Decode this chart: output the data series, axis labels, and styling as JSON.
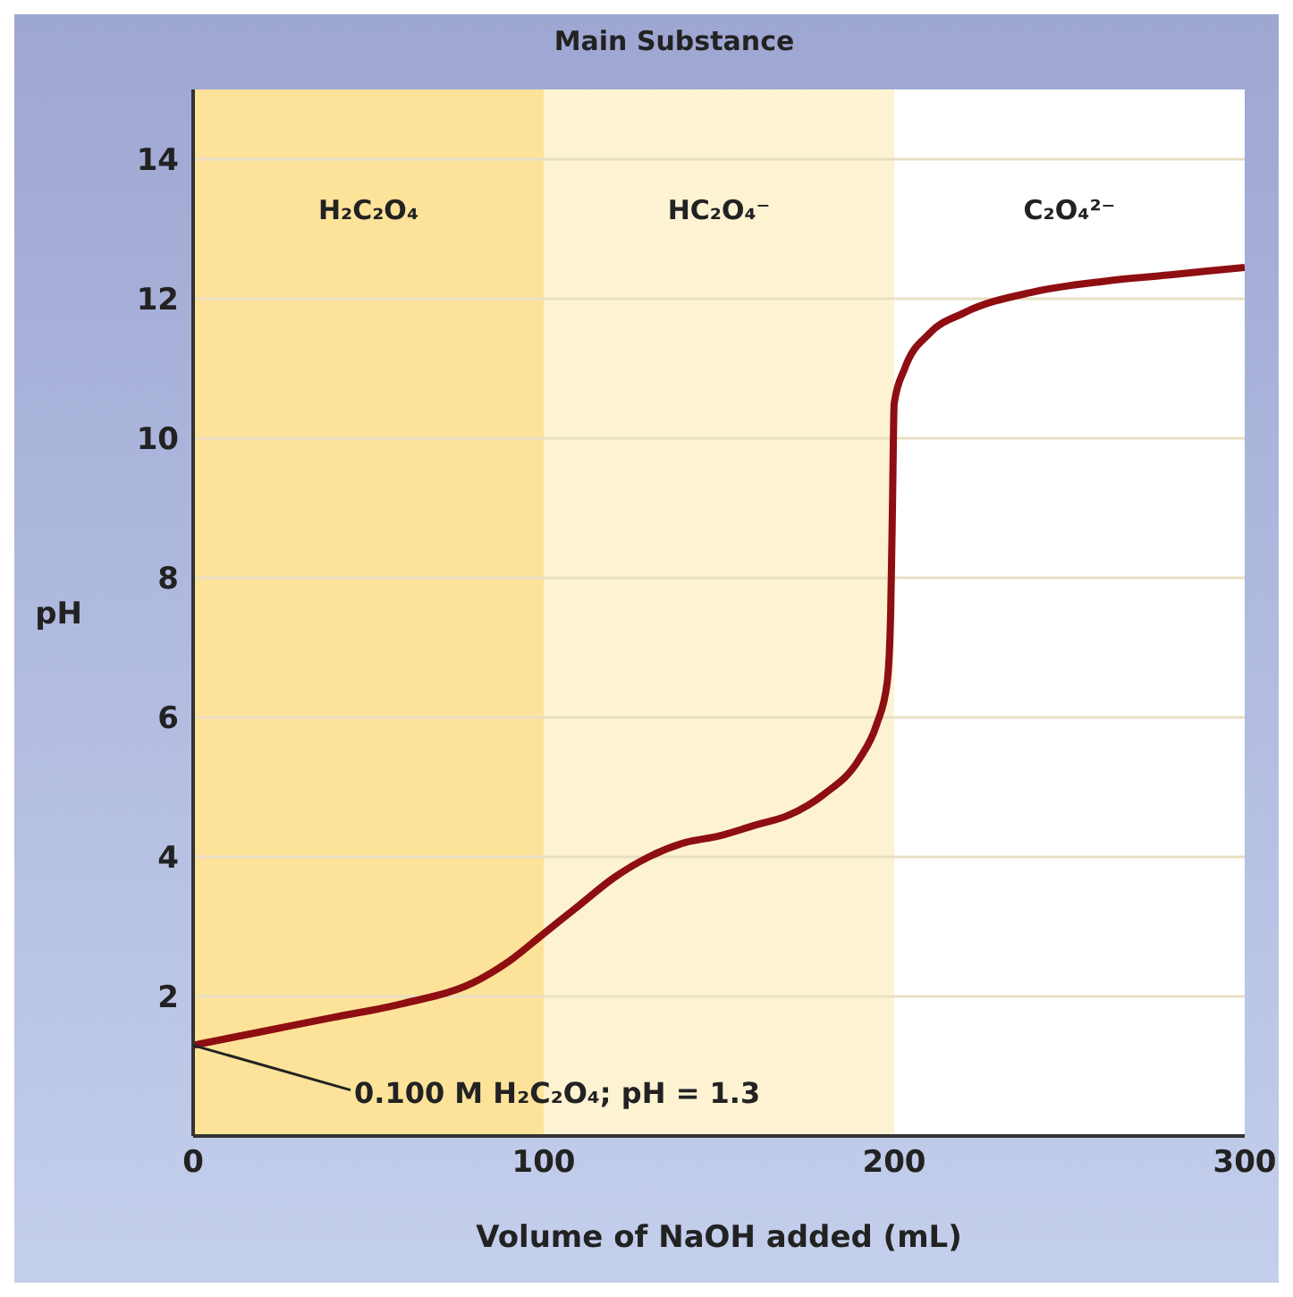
{
  "chart_data": {
    "type": "line",
    "xlabel": "Volume of NaOH added (mL)",
    "ylabel": "pH",
    "x": [
      0,
      20,
      40,
      60,
      80,
      90,
      100,
      110,
      120,
      130,
      140,
      150,
      160,
      170,
      180,
      190,
      195,
      198,
      199,
      199.5,
      200,
      203,
      210,
      220,
      240,
      260,
      280,
      300
    ],
    "series": [
      {
        "color": "#8e0e12",
        "values": [
          1.3,
          1.5,
          1.7,
          1.9,
          2.2,
          2.5,
          2.9,
          3.3,
          3.7,
          4.0,
          4.2,
          4.3,
          4.45,
          4.6,
          4.9,
          5.4,
          5.9,
          6.5,
          7.5,
          9,
          10.5,
          11.0,
          11.5,
          11.8,
          12.1,
          12.25,
          12.35,
          12.45
        ]
      }
    ],
    "xlim": [
      0,
      300
    ],
    "ylim": [
      0,
      15
    ],
    "xticks": [
      0,
      100,
      200,
      300
    ],
    "yticks": [
      2,
      4,
      6,
      8,
      10,
      12,
      14
    ],
    "grid": "y",
    "marker": "none",
    "line_style": "solid",
    "legend": false,
    "bands": [
      {
        "axis": "x",
        "from": 0,
        "to": 100,
        "label": "H₂C₂O₄",
        "color": "#fde39a"
      },
      {
        "axis": "x",
        "from": 100,
        "to": 200,
        "label": "HC₂O₄⁻",
        "color": "#fdf3d2"
      },
      {
        "axis": "x",
        "from": 200,
        "to": 300,
        "label": "C₂O₄²⁻",
        "color": "#ffffff"
      }
    ],
    "annotations": [
      "Main Substance",
      {
        "text": "0.100 M H₂C₂O₄; pH = 1.3",
        "x": 0,
        "y": 1.3
      }
    ]
  }
}
